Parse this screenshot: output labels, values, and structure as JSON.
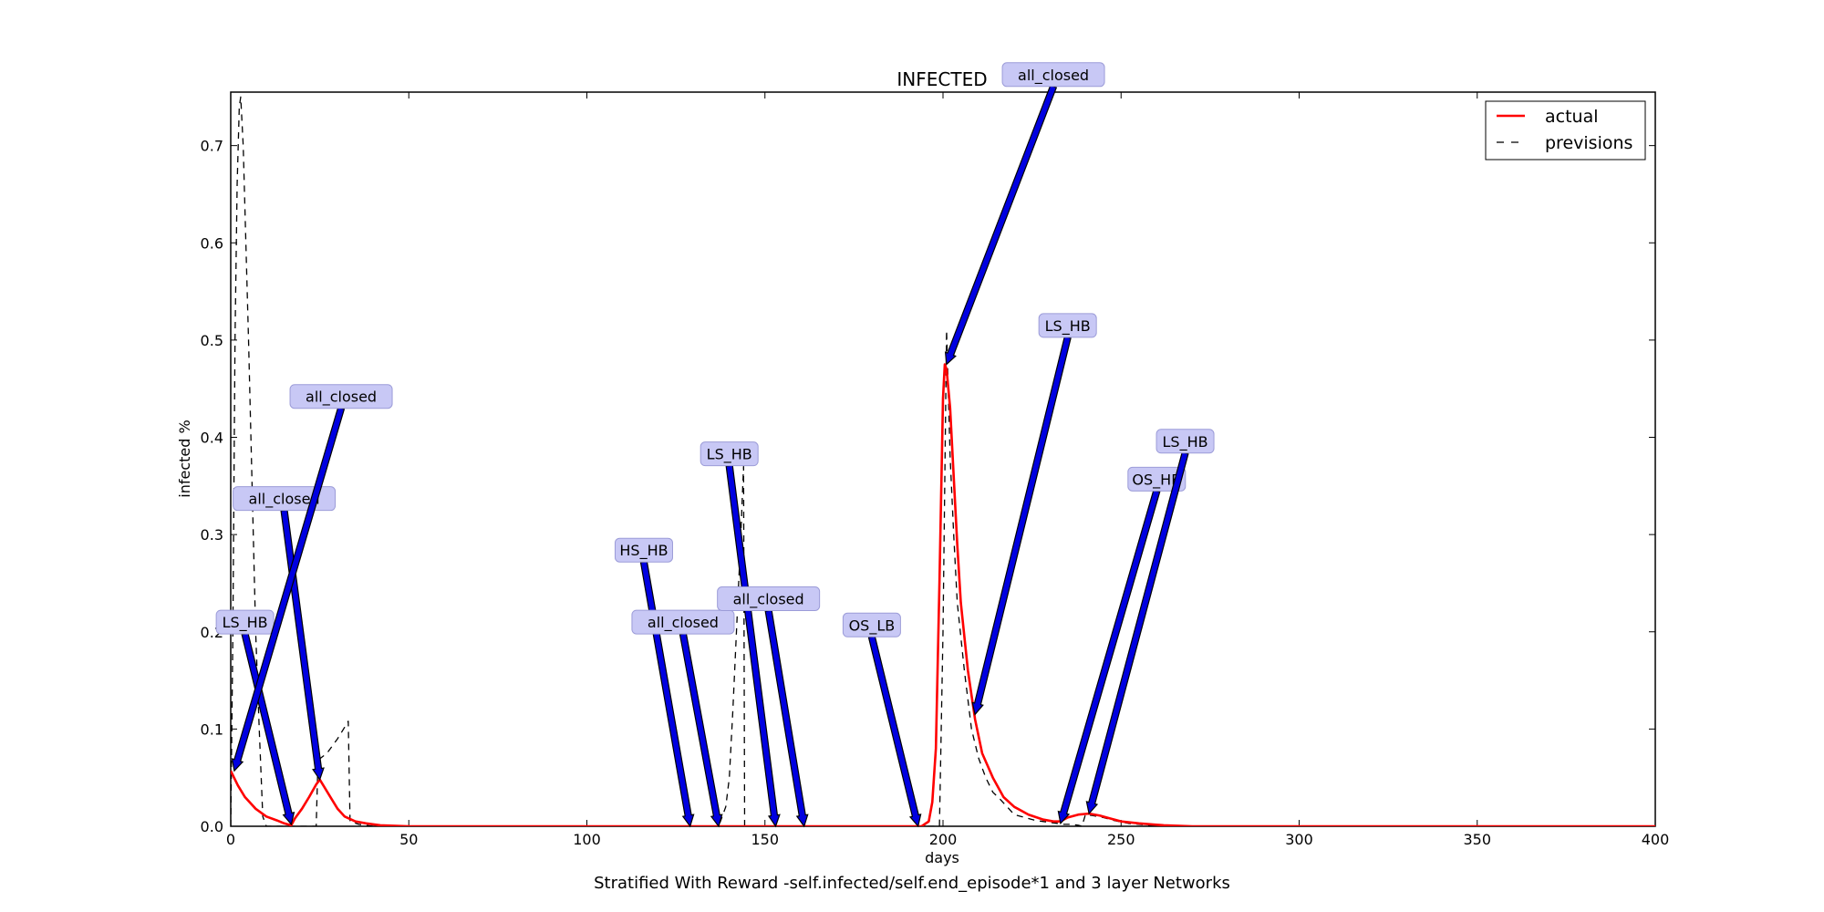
{
  "chart_data": {
    "type": "line",
    "title": "INFECTED",
    "xlabel": "days",
    "ylabel": "infected %",
    "caption": "Stratified With Reward -self.infected/self.end_episode*1 and 3 layer Networks",
    "xlim": [
      0,
      400
    ],
    "ylim": [
      0,
      0.755
    ],
    "xticks": [
      0,
      50,
      100,
      150,
      200,
      250,
      300,
      350,
      400
    ],
    "yticks": [
      0.0,
      0.1,
      0.2,
      0.3,
      0.4,
      0.5,
      0.6,
      0.7
    ],
    "grid": false,
    "legend_position": "top-right",
    "series": [
      {
        "name": "actual",
        "style": "solid",
        "color": "#ff0000",
        "points": [
          [
            0,
            0.057
          ],
          [
            2,
            0.042
          ],
          [
            4,
            0.03
          ],
          [
            7,
            0.018
          ],
          [
            10,
            0.01
          ],
          [
            13,
            0.006
          ],
          [
            15,
            0.003
          ],
          [
            16,
            0.002
          ],
          [
            17,
            0.001
          ],
          [
            18,
            0.008
          ],
          [
            20,
            0.018
          ],
          [
            22,
            0.03
          ],
          [
            24,
            0.043
          ],
          [
            25,
            0.048
          ],
          [
            26,
            0.042
          ],
          [
            28,
            0.03
          ],
          [
            30,
            0.018
          ],
          [
            32,
            0.01
          ],
          [
            35,
            0.005
          ],
          [
            38,
            0.003
          ],
          [
            42,
            0.001
          ],
          [
            50,
            0.0
          ],
          [
            100,
            0.0
          ],
          [
            150,
            0.0
          ],
          [
            190,
            0.0
          ],
          [
            194,
            0.0
          ],
          [
            196,
            0.005
          ],
          [
            197,
            0.025
          ],
          [
            198,
            0.08
          ],
          [
            199,
            0.25
          ],
          [
            200,
            0.44
          ],
          [
            200.5,
            0.475
          ],
          [
            201,
            0.47
          ],
          [
            202,
            0.43
          ],
          [
            203,
            0.36
          ],
          [
            204,
            0.29
          ],
          [
            205,
            0.23
          ],
          [
            207,
            0.16
          ],
          [
            209,
            0.11
          ],
          [
            211,
            0.075
          ],
          [
            214,
            0.05
          ],
          [
            217,
            0.03
          ],
          [
            220,
            0.02
          ],
          [
            224,
            0.012
          ],
          [
            228,
            0.007
          ],
          [
            231,
            0.005
          ],
          [
            233,
            0.005
          ],
          [
            235,
            0.009
          ],
          [
            238,
            0.012
          ],
          [
            241,
            0.013
          ],
          [
            244,
            0.011
          ],
          [
            247,
            0.008
          ],
          [
            250,
            0.005
          ],
          [
            255,
            0.003
          ],
          [
            262,
            0.001
          ],
          [
            270,
            0.0
          ],
          [
            300,
            0.0
          ],
          [
            400,
            0.0
          ]
        ]
      },
      {
        "name": "previsions",
        "style": "dashed",
        "color": "#000000",
        "points": [
          [
            0,
            0.0
          ],
          [
            0.6,
            0.2
          ],
          [
            1.2,
            0.5
          ],
          [
            1.8,
            0.66
          ],
          [
            2.4,
            0.74
          ],
          [
            2.8,
            0.75
          ],
          [
            3.5,
            0.7
          ],
          [
            5,
            0.5
          ],
          [
            6,
            0.35
          ],
          [
            7,
            0.2
          ],
          [
            8,
            0.1
          ],
          [
            9,
            0.01
          ],
          [
            10,
            0.0
          ],
          [
            17,
            0.0
          ],
          [
            24,
            0.0
          ],
          [
            24.5,
            0.068
          ],
          [
            27,
            0.075
          ],
          [
            30,
            0.09
          ],
          [
            33,
            0.108
          ],
          [
            33.5,
            0.005
          ],
          [
            36,
            0.002
          ],
          [
            40,
            0.0
          ],
          [
            100,
            0.0
          ],
          [
            137,
            0.0
          ],
          [
            139,
            0.02
          ],
          [
            140,
            0.05
          ],
          [
            141,
            0.12
          ],
          [
            142,
            0.2
          ],
          [
            143,
            0.28
          ],
          [
            144,
            0.37
          ],
          [
            144.3,
            0.0
          ],
          [
            150,
            0.0
          ],
          [
            199,
            0.0
          ],
          [
            200,
            0.2
          ],
          [
            201,
            0.51
          ],
          [
            202,
            0.38
          ],
          [
            203,
            0.3
          ],
          [
            204,
            0.23
          ],
          [
            206,
            0.16
          ],
          [
            208,
            0.1
          ],
          [
            210,
            0.07
          ],
          [
            212,
            0.05
          ],
          [
            214,
            0.035
          ],
          [
            216,
            0.028
          ],
          [
            218,
            0.02
          ],
          [
            220,
            0.012
          ],
          [
            222,
            0.01
          ],
          [
            224,
            0.008
          ],
          [
            226,
            0.006
          ],
          [
            228,
            0.005
          ],
          [
            230,
            0.004
          ],
          [
            232,
            0.003
          ],
          [
            234,
            0.002
          ],
          [
            236,
            0.002
          ],
          [
            238,
            0.001
          ],
          [
            239,
            0.0
          ],
          [
            240,
            0.012
          ],
          [
            242,
            0.011
          ],
          [
            245,
            0.009
          ],
          [
            248,
            0.006
          ],
          [
            252,
            0.003
          ],
          [
            258,
            0.001
          ],
          [
            265,
            0.0
          ],
          [
            400,
            0.0
          ]
        ]
      }
    ],
    "annotations": [
      {
        "text": "LS_HB",
        "tx": 4,
        "ty": 0.21,
        "x": 17,
        "y": 0.002
      },
      {
        "text": "all_closed",
        "tx": 15,
        "ty": 0.337,
        "x": 25,
        "y": 0.048
      },
      {
        "text": "all_closed",
        "tx": 31,
        "ty": 0.442,
        "x": 1,
        "y": 0.057
      },
      {
        "text": "HS_HB",
        "tx": 116,
        "ty": 0.284,
        "x": 129,
        "y": 0.0
      },
      {
        "text": "all_closed",
        "tx": 127,
        "ty": 0.21,
        "x": 137,
        "y": 0.0
      },
      {
        "text": "LS_HB",
        "tx": 140,
        "ty": 0.383,
        "x": 153,
        "y": 0.0
      },
      {
        "text": "all_closed",
        "tx": 151,
        "ty": 0.234,
        "x": 161,
        "y": 0.0
      },
      {
        "text": "OS_LB",
        "tx": 180,
        "ty": 0.207,
        "x": 193,
        "y": 0.0
      },
      {
        "text": "all_closed",
        "tx": 231,
        "ty": 0.773,
        "x": 201,
        "y": 0.475
      },
      {
        "text": "LS_HB",
        "tx": 235,
        "ty": 0.515,
        "x": 209,
        "y": 0.115
      },
      {
        "text": "OS_HB",
        "tx": 260,
        "ty": 0.357,
        "x": 233,
        "y": 0.003
      },
      {
        "text": "LS_HB",
        "tx": 268,
        "ty": 0.396,
        "x": 241,
        "y": 0.013
      }
    ]
  }
}
